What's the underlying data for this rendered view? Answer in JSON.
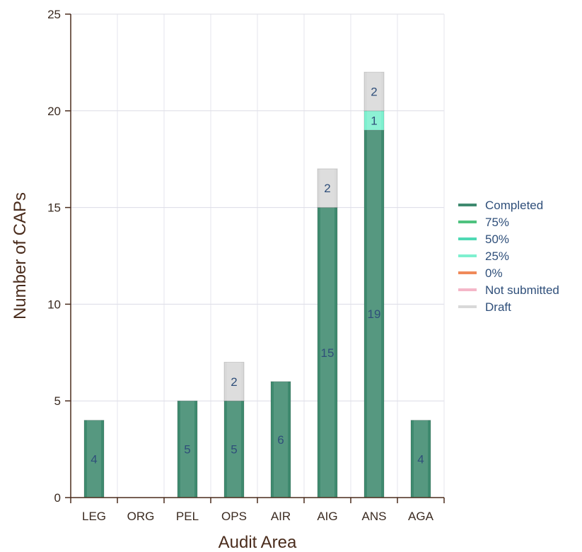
{
  "chart_data": {
    "type": "bar",
    "stacked": true,
    "title": "",
    "xlabel": "Audit Area",
    "ylabel": "Number of CAPs",
    "ylim": [
      0,
      25
    ],
    "yticks": [
      0,
      5,
      10,
      15,
      20,
      25
    ],
    "grid": true,
    "legend_position": "right",
    "categories": [
      "LEG",
      "ORG",
      "PEL",
      "OPS",
      "AIR",
      "AIG",
      "ANS",
      "AGA"
    ],
    "series": [
      {
        "name": "Completed",
        "color": "#3f8a6f",
        "values": [
          4,
          0,
          5,
          5,
          6,
          15,
          19,
          4
        ]
      },
      {
        "name": "75%",
        "color": "#4fc27f",
        "values": [
          0,
          0,
          0,
          0,
          0,
          0,
          0,
          0
        ]
      },
      {
        "name": "50%",
        "color": "#4fd9b4",
        "values": [
          0,
          0,
          0,
          0,
          0,
          0,
          0,
          0
        ]
      },
      {
        "name": "25%",
        "color": "#7ef0cf",
        "values": [
          0,
          0,
          0,
          0,
          0,
          0,
          1,
          0
        ]
      },
      {
        "name": "0%",
        "color": "#f08a5a",
        "values": [
          0,
          0,
          0,
          0,
          0,
          0,
          0,
          0
        ]
      },
      {
        "name": "Not submitted",
        "color": "#f4b6c8",
        "values": [
          0,
          0,
          0,
          0,
          0,
          0,
          0,
          0
        ]
      },
      {
        "name": "Draft",
        "color": "#d9d9d9",
        "values": [
          0,
          0,
          0,
          2,
          0,
          2,
          2,
          0
        ]
      }
    ]
  }
}
